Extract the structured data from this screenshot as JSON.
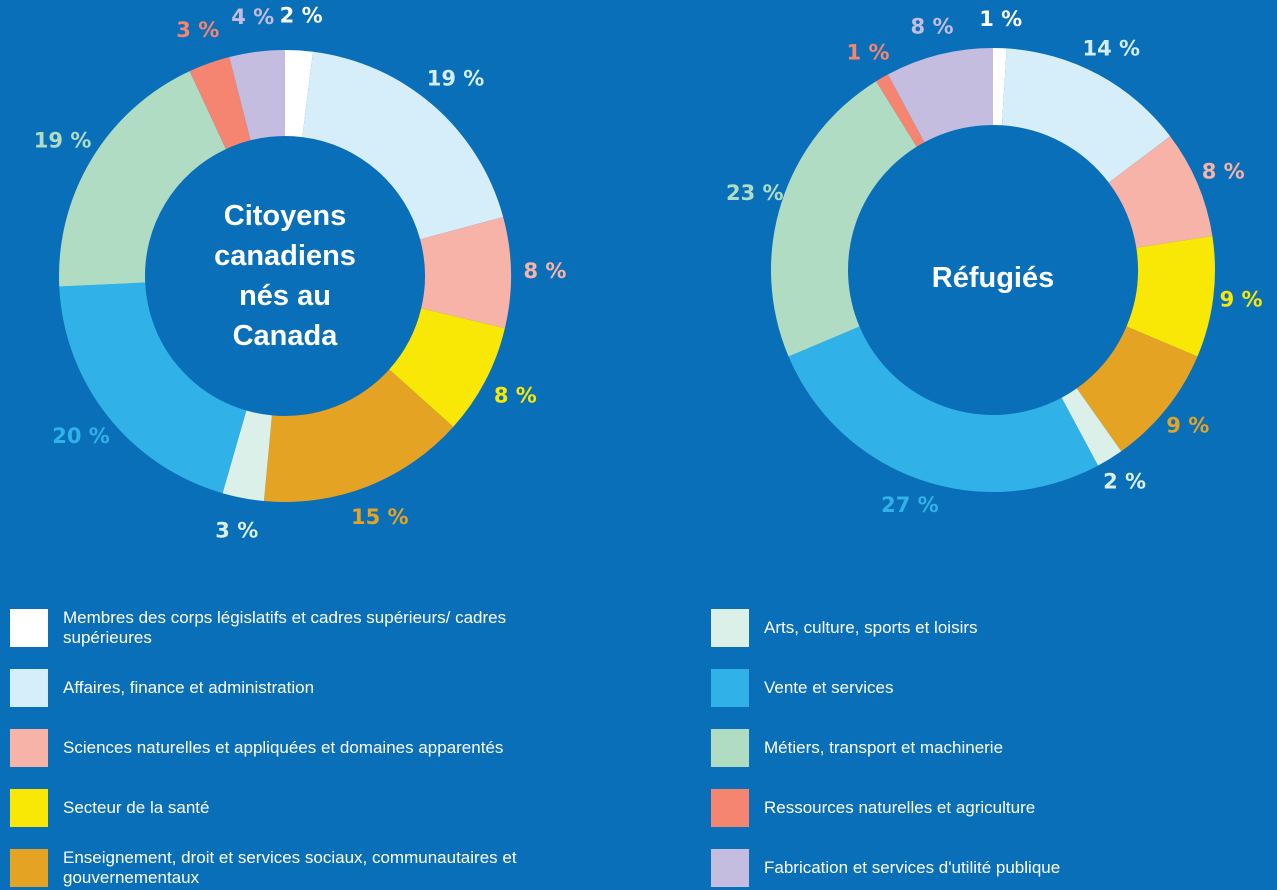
{
  "chart_data": [
    {
      "type": "pie",
      "title": "Citoyens canadiens nés au Canada",
      "categories": [
        "Membres des corps législatifs et cadres supérieurs/ cadres supérieures",
        "Affaires, finance et administration",
        "Sciences naturelles et appliquées et domaines apparentés",
        "Secteur de la santé",
        "Enseignement, droit et services sociaux, communautaires et gouvernementaux",
        "Arts, culture, sports et loisirs",
        "Vente et services",
        "Métiers, transport et machinerie",
        "Ressources naturelles et agriculture",
        "Fabrication et services d'utilité publique"
      ],
      "values": [
        2,
        19,
        8,
        8,
        15,
        3,
        20,
        19,
        3,
        4
      ],
      "value_labels": [
        "2 %",
        "19 %",
        "8 %",
        "8 %",
        "15 %",
        "3 %",
        "20 %",
        "19 %",
        "3 %",
        "4 %"
      ],
      "colors": [
        "#ffffff",
        "#d5eefa",
        "#f8b3a8",
        "#f9e805",
        "#e5a324",
        "#dbf0e8",
        "#30b2e9",
        "#b0dcc4",
        "#f58570",
        "#c4bde0"
      ]
    },
    {
      "type": "pie",
      "title": "Réfugiés",
      "categories": [
        "Membres des corps législatifs et cadres supérieurs/ cadres supérieures",
        "Affaires, finance et administration",
        "Sciences naturelles et appliquées et domaines apparentés",
        "Secteur de la santé",
        "Enseignement, droit et services sociaux, communautaires et gouvernementaux",
        "Arts, culture, sports et loisirs",
        "Vente et services",
        "Métiers, transport et machinerie",
        "Ressources naturelles et agriculture",
        "Fabrication et services d'utilité publique"
      ],
      "values": [
        1,
        14,
        8,
        9,
        9,
        2,
        27,
        23,
        1,
        8
      ],
      "value_labels": [
        "1 %",
        "14 %",
        "8 %",
        "9 %",
        "9 %",
        "2 %",
        "27 %",
        "23 %",
        "1 %",
        "8 %"
      ],
      "colors": [
        "#ffffff",
        "#d5eefa",
        "#f8b3a8",
        "#f9e805",
        "#e5a324",
        "#dbf0e8",
        "#30b2e9",
        "#b0dcc4",
        "#f58570",
        "#c4bde0"
      ]
    }
  ]
}
